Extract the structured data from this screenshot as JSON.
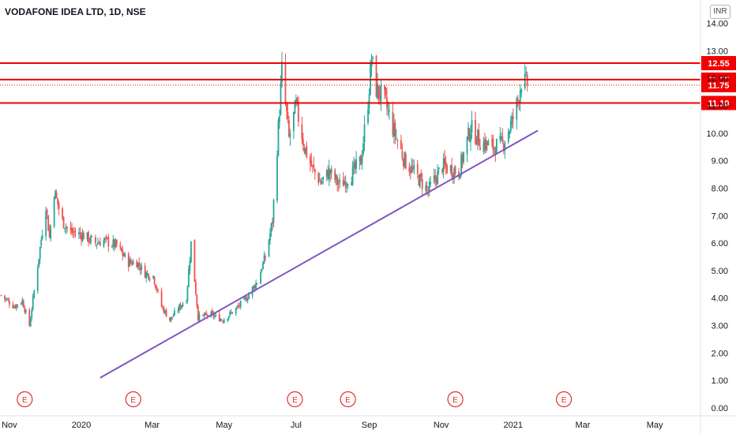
{
  "title": "VODAFONE IDEA LTD, 1D, NSE",
  "currency": "INR",
  "colors": {
    "up": "#26a69a",
    "down": "#ef5350",
    "level_line": "#f00000",
    "trendline": "#7e57c2",
    "axis_text": "#131722",
    "event": "#e0312e"
  },
  "chart_data": {
    "type": "candlestick",
    "ylim": [
      0,
      14
    ],
    "y_ticks": [
      "0.00",
      "1.00",
      "2.00",
      "3.00",
      "4.00",
      "5.00",
      "6.00",
      "7.00",
      "8.00",
      "9.00",
      "10.00",
      "11.00",
      "12.00",
      "13.00",
      "14.00"
    ],
    "x_ticks": [
      "Nov",
      "2020",
      "Mar",
      "May",
      "Jul",
      "Sep",
      "Nov",
      "2021",
      "Mar",
      "May"
    ],
    "horizontal_levels": [
      {
        "label": "12.55",
        "value": 12.55,
        "style": "solid"
      },
      {
        "label": "11.95",
        "value": 11.95,
        "style": "solid"
      },
      {
        "label": "11.75",
        "value": 11.75,
        "style": "dotted"
      },
      {
        "label": "11.10",
        "value": 11.1,
        "style": "solid"
      }
    ],
    "trendline": {
      "start": {
        "date": "2020-01-17",
        "value": 1.1
      },
      "end": {
        "date": "2021-01-22",
        "value": 10.1
      }
    },
    "event_markers": [
      "E",
      "E",
      "E",
      "E",
      "E",
      "E"
    ],
    "price_path": [
      [
        "2019-10-25",
        4.1
      ],
      [
        "2019-11-05",
        3.7
      ],
      [
        "2019-11-12",
        3.9
      ],
      [
        "2019-11-18",
        3.0
      ],
      [
        "2019-11-25",
        5.2
      ],
      [
        "2019-12-02",
        7.4
      ],
      [
        "2019-12-05",
        6.2
      ],
      [
        "2019-12-09",
        7.9
      ],
      [
        "2019-12-16",
        6.8
      ],
      [
        "2019-12-23",
        6.4
      ],
      [
        "2020-01-02",
        6.3
      ],
      [
        "2020-01-13",
        6.0
      ],
      [
        "2020-01-20",
        6.1
      ],
      [
        "2020-01-31",
        5.9
      ],
      [
        "2020-02-10",
        5.3
      ],
      [
        "2020-02-17",
        5.3
      ],
      [
        "2020-02-24",
        4.9
      ],
      [
        "2020-03-02",
        4.8
      ],
      [
        "2020-03-09",
        3.7
      ],
      [
        "2020-03-16",
        3.2
      ],
      [
        "2020-03-23",
        3.6
      ],
      [
        "2020-03-30",
        4.0
      ],
      [
        "2020-04-03",
        6.0
      ],
      [
        "2020-04-09",
        3.3
      ],
      [
        "2020-04-20",
        3.4
      ],
      [
        "2020-04-30",
        3.2
      ],
      [
        "2020-05-11",
        3.6
      ],
      [
        "2020-05-20",
        4.0
      ],
      [
        "2020-05-29",
        4.6
      ],
      [
        "2020-06-05",
        5.5
      ],
      [
        "2020-06-11",
        6.8
      ],
      [
        "2020-06-15",
        9.5
      ],
      [
        "2020-06-19",
        12.3
      ],
      [
        "2020-06-25",
        9.8
      ],
      [
        "2020-07-01",
        11.0
      ],
      [
        "2020-07-08",
        9.5
      ],
      [
        "2020-07-15",
        8.7
      ],
      [
        "2020-07-22",
        8.2
      ],
      [
        "2020-07-29",
        8.6
      ],
      [
        "2020-08-07",
        8.1
      ],
      [
        "2020-08-17",
        8.5
      ],
      [
        "2020-08-25",
        9.0
      ],
      [
        "2020-08-31",
        11.2
      ],
      [
        "2020-09-03",
        12.7
      ],
      [
        "2020-09-07",
        11.6
      ],
      [
        "2020-09-14",
        11.2
      ],
      [
        "2020-09-21",
        10.2
      ],
      [
        "2020-10-01",
        9.0
      ],
      [
        "2020-10-12",
        8.4
      ],
      [
        "2020-10-21",
        7.9
      ],
      [
        "2020-11-02",
        8.8
      ],
      [
        "2020-11-16",
        8.6
      ],
      [
        "2020-11-26",
        10.2
      ],
      [
        "2020-12-04",
        9.7
      ],
      [
        "2020-12-14",
        9.5
      ],
      [
        "2020-12-23",
        9.6
      ],
      [
        "2020-12-31",
        10.4
      ],
      [
        "2021-01-05",
        11.2
      ],
      [
        "2021-01-08",
        11.9
      ],
      [
        "2021-01-13",
        11.8
      ]
    ]
  }
}
